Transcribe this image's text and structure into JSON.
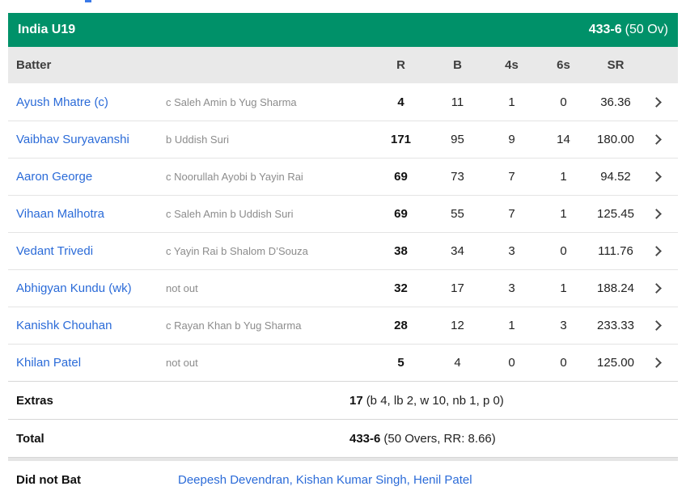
{
  "title_bar": {
    "team": "India U19",
    "score": "433-6",
    "overs": "(50 Ov)"
  },
  "table_header": {
    "batter": "Batter",
    "runs": "R",
    "balls": "B",
    "fours": "4s",
    "sixes": "6s",
    "strike_rate": "SR"
  },
  "batters": [
    {
      "name": "Ayush Mhatre (c)",
      "dismissal": "c Saleh Amin b Yug Sharma",
      "runs": "4",
      "balls": "11",
      "fours": "1",
      "sixes": "0",
      "strike_rate": "36.36"
    },
    {
      "name": "Vaibhav Suryavanshi",
      "dismissal": "b Uddish Suri",
      "runs": "171",
      "balls": "95",
      "fours": "9",
      "sixes": "14",
      "strike_rate": "180.00"
    },
    {
      "name": "Aaron George",
      "dismissal": "c Noorullah Ayobi b Yayin Rai",
      "runs": "69",
      "balls": "73",
      "fours": "7",
      "sixes": "1",
      "strike_rate": "94.52"
    },
    {
      "name": "Vihaan Malhotra",
      "dismissal": "c Saleh Amin b Uddish Suri",
      "runs": "69",
      "balls": "55",
      "fours": "7",
      "sixes": "1",
      "strike_rate": "125.45"
    },
    {
      "name": "Vedant Trivedi",
      "dismissal": "c Yayin Rai b Shalom D’Souza",
      "runs": "38",
      "balls": "34",
      "fours": "3",
      "sixes": "0",
      "strike_rate": "111.76"
    },
    {
      "name": "Abhigyan Kundu (wk)",
      "dismissal": "not out",
      "runs": "32",
      "balls": "17",
      "fours": "3",
      "sixes": "1",
      "strike_rate": "188.24"
    },
    {
      "name": "Kanishk Chouhan",
      "dismissal": "c Rayan Khan b Yug Sharma",
      "runs": "28",
      "balls": "12",
      "fours": "1",
      "sixes": "3",
      "strike_rate": "233.33"
    },
    {
      "name": "Khilan Patel",
      "dismissal": "not out",
      "runs": "5",
      "balls": "4",
      "fours": "0",
      "sixes": "0",
      "strike_rate": "125.00"
    }
  ],
  "extras": {
    "label": "Extras",
    "runs": "17",
    "detail": "(b 4, lb 2, w 10, nb 1, p 0)"
  },
  "total": {
    "label": "Total",
    "score": "433-6",
    "detail": "(50 Overs, RR: 8.66)"
  },
  "did_not_bat": {
    "label": "Did not Bat",
    "players": "Deepesh Devendran, Kishan Kumar Singh, Henil Patel"
  },
  "icons": {
    "row_chevron": "chevron-right"
  },
  "colors": {
    "header_green": "#009169",
    "link_blue": "#2b6bd8",
    "table_header_bg": "#e9e9e9",
    "dismissal_gray": "#8c8c8c"
  }
}
